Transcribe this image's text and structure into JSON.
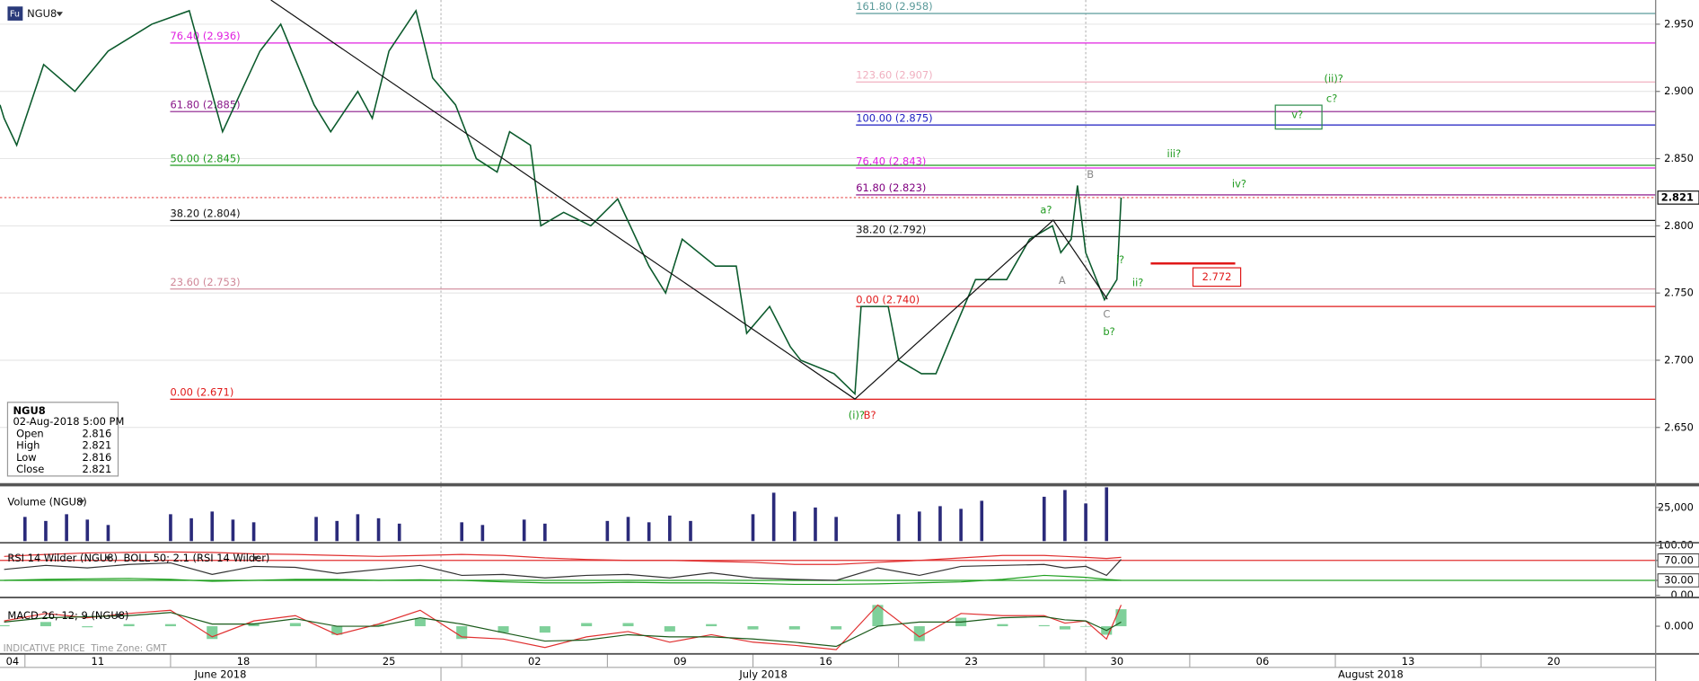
{
  "chart_data": [
    {
      "type": "line",
      "icon": "Fu",
      "title": "NGU8",
      "color": "#0b5a2c",
      "grid": true,
      "x": [
        9.8,
        10.0,
        10.6,
        11.9,
        13.4,
        15.0,
        17.1,
        18.9,
        20.5,
        22.3,
        23.3,
        24.9,
        25.7,
        27.0,
        27.7,
        28.5,
        29.8,
        30.6,
        31.7,
        32.7,
        33.7,
        34.3,
        35.3,
        35.8,
        36.9,
        38.2,
        39.5,
        41.0,
        41.8,
        42.6,
        44.2,
        45.2,
        45.7,
        46.8,
        47.8,
        48.3,
        49.9,
        50.9,
        51.2,
        52.5,
        53.0,
        54.1,
        54.8,
        55.6,
        56.7,
        58.2,
        59.3,
        60.4,
        60.8,
        61.3,
        61.6,
        62.0,
        62.9,
        63.5,
        63.7
      ],
      "values": [
        2.89,
        2.88,
        2.86,
        2.92,
        2.9,
        2.93,
        2.95,
        2.96,
        2.87,
        2.93,
        2.95,
        2.89,
        2.87,
        2.9,
        2.88,
        2.93,
        2.96,
        2.91,
        2.89,
        2.85,
        2.84,
        2.87,
        2.86,
        2.8,
        2.81,
        2.8,
        2.82,
        2.77,
        2.75,
        2.79,
        2.77,
        2.77,
        2.72,
        2.74,
        2.71,
        2.7,
        2.69,
        2.675,
        2.74,
        2.74,
        2.7,
        2.69,
        2.69,
        2.72,
        2.76,
        2.76,
        2.79,
        2.8,
        2.78,
        2.79,
        2.83,
        2.78,
        2.745,
        2.76,
        2.821
      ],
      "xlim": [
        9.8,
        89.4
      ],
      "xticks": [
        {
          "value": 4,
          "label": "04"
        },
        11,
        18,
        25,
        {
          "value": 32,
          "label": "02"
        },
        {
          "value": 39,
          "label": "09"
        },
        {
          "value": 46,
          "label": "16"
        },
        {
          "value": 53,
          "label": "23"
        },
        {
          "value": 60,
          "label": "30"
        },
        {
          "value": 67,
          "label": "06"
        },
        {
          "value": 74,
          "label": "13"
        },
        {
          "value": 81,
          "label": "20"
        }
      ],
      "months": [
        {
          "value": 1,
          "label": "June 2018"
        },
        {
          "value": 31,
          "label": "July 2018"
        },
        {
          "value": 62,
          "label": "August 2018"
        }
      ],
      "ylim": [
        2.609,
        2.968
      ],
      "yticks": [
        {
          "value": 2.65,
          "label": "2.650"
        },
        {
          "value": 2.7,
          "label": "2.700"
        },
        {
          "value": 2.75,
          "label": "2.750"
        },
        {
          "value": 2.8,
          "label": "2.800"
        },
        {
          "value": 2.85,
          "label": "2.850"
        },
        {
          "value": 2.9,
          "label": "2.900"
        },
        {
          "value": 2.95,
          "label": "2.950"
        }
      ],
      "current": 2.821,
      "target": 2.772,
      "fib_sets": [
        [
          {
            "value": 2.936,
            "label": "76.40 (2.936)",
            "color": "#e020e0"
          },
          {
            "value": 2.885,
            "label": "61.80 (2.885)",
            "color": "#8a1a8a"
          },
          {
            "value": 2.845,
            "label": "50.00 (2.845)",
            "color": "#1f9a1f"
          },
          {
            "value": 2.804,
            "label": "38.20 (2.804)",
            "color": "#111111"
          },
          {
            "value": 2.753,
            "label": "23.60 (2.753)",
            "color": "#d08898"
          },
          {
            "value": 2.671,
            "label": "0.00 (2.671)",
            "color": "#e01818"
          }
        ],
        [
          {
            "value": 2.958,
            "label": "161.80 (2.958)",
            "color": "#5a9a9a"
          },
          {
            "value": 2.907,
            "label": "123.60 (2.907)",
            "color": "#f0b0c0"
          },
          {
            "value": 2.875,
            "label": "100.00 (2.875)",
            "color": "#1c1cc0"
          },
          {
            "value": 2.843,
            "label": "76.40 (2.843)",
            "color": "#e020e0"
          },
          {
            "value": 2.823,
            "label": "61.80 (2.823)",
            "color": "#800080"
          },
          {
            "value": 2.792,
            "label": "38.20 (2.792)",
            "color": "#111111"
          },
          {
            "value": 2.74,
            "label": "0.00 (2.740)",
            "color": "#e01818"
          }
        ]
      ],
      "annotations": [
        "(i)?",
        "B?",
        "a?",
        "A",
        "B",
        "C",
        "b?",
        "i?",
        "ii?",
        "iii?",
        "iv?",
        "v?",
        "c?",
        "(ii)?"
      ],
      "info": {
        "symbol": "NGU8",
        "datetime": "02-Aug-2018 5:00 PM",
        "rows": [
          [
            "Open",
            2.816
          ],
          [
            "High",
            2.821
          ],
          [
            "Low",
            2.816
          ],
          [
            "Close",
            2.821
          ]
        ]
      },
      "footer": {
        "source": "INDICATIVE PRICE",
        "timezone": "Time Zone: GMT"
      }
    },
    {
      "type": "bar",
      "title": "Volume (NGU8)",
      "color": "#2a2a7a",
      "x": [
        11,
        12,
        13,
        14,
        15,
        18,
        19,
        20,
        21,
        22,
        25,
        26,
        27,
        28,
        29,
        32,
        33,
        35,
        36,
        39,
        40,
        41,
        42,
        43,
        46,
        47,
        48,
        49,
        50,
        53,
        54,
        55,
        56,
        57,
        60,
        61,
        62,
        63
      ],
      "values": [
        18000,
        15000,
        20000,
        16000,
        12000,
        20000,
        17000,
        22000,
        16000,
        14000,
        18000,
        15000,
        20000,
        17000,
        13000,
        14000,
        12000,
        16000,
        13000,
        15000,
        18000,
        14000,
        19000,
        15000,
        20000,
        36000,
        22000,
        25000,
        18000,
        20000,
        22000,
        26000,
        24000,
        30000,
        33000,
        38000,
        28000,
        40000
      ],
      "ylim": [
        0,
        40000
      ],
      "yticks": [
        {
          "value": 25000,
          "label": "25,000"
        }
      ]
    },
    {
      "type": "line",
      "title": "RSI 14 Wilder (NGU8)",
      "overlay_title": "BOLL 50; 2.1 (RSI 14 Wilder)",
      "x": [
        10,
        12,
        14,
        16,
        18,
        20,
        22,
        24,
        26,
        28,
        30,
        32,
        34,
        36,
        38,
        40,
        42,
        44,
        46,
        48,
        50,
        52,
        54,
        56,
        58,
        60,
        61,
        62,
        63,
        63.7
      ],
      "series": [
        {
          "color": "#333333",
          "values": [
            52,
            60,
            55,
            62,
            65,
            42,
            58,
            56,
            44,
            52,
            60,
            40,
            42,
            35,
            40,
            42,
            35,
            45,
            35,
            32,
            30,
            55,
            40,
            58,
            60,
            62,
            55,
            58,
            40,
            72
          ]
        },
        {
          "color": "#e03030",
          "values": [
            78,
            82,
            85,
            86,
            87,
            86,
            83,
            82,
            80,
            78,
            80,
            82,
            80,
            75,
            72,
            70,
            70,
            68,
            66,
            62,
            62,
            66,
            70,
            75,
            80,
            80,
            78,
            76,
            74,
            76
          ]
        },
        {
          "color": "#20a020",
          "values": [
            30,
            32,
            33,
            34,
            32,
            28,
            30,
            32,
            32,
            30,
            31,
            30,
            27,
            25,
            25,
            26,
            25,
            25,
            24,
            22,
            22,
            23,
            25,
            27,
            32,
            40,
            38,
            36,
            32,
            30
          ]
        }
      ],
      "ref_lines": [
        {
          "value": 70,
          "color": "#e03030"
        },
        {
          "value": 30,
          "color": "#20a020"
        }
      ],
      "ylim": [
        0,
        100
      ],
      "yticks": [
        {
          "value": 100,
          "label": "100.00"
        },
        {
          "value": 70,
          "label": "70.00"
        },
        {
          "value": 30,
          "label": "30.00"
        },
        {
          "value": 0,
          "label": "0.00"
        }
      ]
    },
    {
      "type": "line",
      "title": "MACD 26; 12; 9 (NGU8)",
      "x": [
        10,
        12,
        14,
        16,
        18,
        20,
        22,
        24,
        26,
        28,
        30,
        32,
        34,
        36,
        38,
        40,
        42,
        44,
        46,
        48,
        50,
        52,
        54,
        56,
        58,
        60,
        61,
        62,
        63,
        63.7
      ],
      "series": [
        {
          "type": "bar",
          "color": "#7fd09a",
          "values": [
            0.001,
            0.004,
            -0.001,
            0.002,
            0.002,
            -0.012,
            0.003,
            0.003,
            -0.008,
            0.002,
            0.007,
            -0.012,
            -0.006,
            -0.006,
            0.003,
            0.003,
            -0.005,
            0.002,
            -0.003,
            -0.003,
            -0.003,
            0.02,
            -0.014,
            0.008,
            0.002,
            0.001,
            -0.003,
            0,
            -0.008,
            0.016
          ]
        },
        {
          "color": "#e03030",
          "values": [
            0.005,
            0.012,
            0.008,
            0.012,
            0.015,
            -0.01,
            0.005,
            0.01,
            -0.008,
            0.002,
            0.015,
            -0.01,
            -0.012,
            -0.02,
            -0.01,
            -0.005,
            -0.015,
            -0.008,
            -0.015,
            -0.018,
            -0.022,
            0.02,
            -0.01,
            0.012,
            0.01,
            0.01,
            0.003,
            0.005,
            -0.012,
            0.02
          ]
        },
        {
          "color": "#1a5a1a",
          "values": [
            0.004,
            0.008,
            0.009,
            0.01,
            0.013,
            0.002,
            0.002,
            0.007,
            0,
            0,
            0.008,
            0.002,
            -0.006,
            -0.014,
            -0.013,
            -0.008,
            -0.01,
            -0.01,
            -0.012,
            -0.015,
            -0.019,
            0,
            0.004,
            0.004,
            0.008,
            0.009,
            0.006,
            0.005,
            -0.004,
            0.004
          ]
        }
      ],
      "ylim": [
        -0.025,
        0.025
      ],
      "yticks": [
        {
          "value": 0,
          "label": "0.000"
        }
      ]
    }
  ]
}
